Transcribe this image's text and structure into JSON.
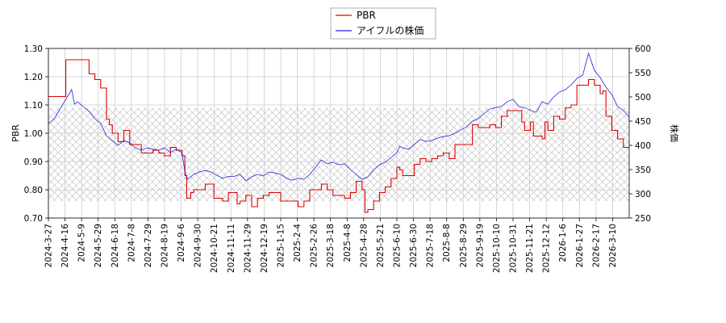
{
  "chart_data": {
    "type": "line",
    "legend": {
      "placement": "top-center",
      "entries": [
        {
          "label": "PBR",
          "color": "#dd0000"
        },
        {
          "label": "アイフルの株価",
          "color": "#2222dd"
        }
      ]
    },
    "ylabel_left": "PBR",
    "ylabel_right": "株価",
    "ylim_left": [
      0.7,
      1.3
    ],
    "ylim_right": [
      250,
      600
    ],
    "yticks_left": [
      "0.70",
      "0.80",
      "0.90",
      "1.00",
      "1.10",
      "1.20",
      "1.30"
    ],
    "yticks_right": [
      "250",
      "300",
      "350",
      "400",
      "450",
      "500",
      "550",
      "600"
    ],
    "x_ticks": [
      "2024-3-27",
      "2024-4-16",
      "2024-5-9",
      "2024-5-29",
      "2024-6-18",
      "2024-7-8",
      "2024-7-29",
      "2024-8-19",
      "2024-9-6",
      "2024-9-30",
      "2024-10-21",
      "2024-11-11",
      "2024-11-29",
      "2024-12-19",
      "2025-1-15",
      "2025-2-4",
      "2025-2-26",
      "2025-3-18",
      "2025-4-8",
      "2025-4-28",
      "2025-5-21",
      "2025-6-10",
      "2025-6-30",
      "2025-7-18",
      "2025-8-8",
      "2025-8-29",
      "2025-9-19",
      "2025-10-10",
      "2025-10-31",
      "2025-11-21",
      "2025-12-12",
      "2026-1-6",
      "2026-1-27",
      "2026-2-17",
      "2026-3-10"
    ],
    "grid": true,
    "hatched_band_left": [
      0.76,
      1.09
    ],
    "series": [
      {
        "name": "PBR",
        "axis": "left",
        "color": "#dd0000",
        "points": [
          [
            0,
            1.13
          ],
          [
            2,
            1.13
          ],
          [
            3,
            1.26
          ],
          [
            6,
            1.26
          ],
          [
            7,
            1.21
          ],
          [
            8,
            1.19
          ],
          [
            9,
            1.16
          ],
          [
            10,
            1.05
          ],
          [
            10.5,
            1.03
          ],
          [
            11,
            1.0
          ],
          [
            12,
            0.97
          ],
          [
            13,
            1.01
          ],
          [
            14,
            0.96
          ],
          [
            15,
            0.96
          ],
          [
            16,
            0.93
          ],
          [
            17,
            0.93
          ],
          [
            18,
            0.94
          ],
          [
            19,
            0.93
          ],
          [
            20,
            0.92
          ],
          [
            21,
            0.95
          ],
          [
            22,
            0.94
          ],
          [
            23,
            0.92
          ],
          [
            23.5,
            0.85
          ],
          [
            23.8,
            0.77
          ],
          [
            24.5,
            0.79
          ],
          [
            25,
            0.8
          ],
          [
            26,
            0.8
          ],
          [
            27,
            0.82
          ],
          [
            28,
            0.82
          ],
          [
            28.5,
            0.77
          ],
          [
            29,
            0.77
          ],
          [
            30,
            0.76
          ],
          [
            31,
            0.79
          ],
          [
            32,
            0.79
          ],
          [
            32.5,
            0.75
          ],
          [
            33,
            0.76
          ],
          [
            34,
            0.78
          ],
          [
            35,
            0.74
          ],
          [
            36,
            0.77
          ],
          [
            37,
            0.78
          ],
          [
            38,
            0.79
          ],
          [
            39,
            0.79
          ],
          [
            40,
            0.76
          ],
          [
            41,
            0.76
          ],
          [
            42,
            0.76
          ],
          [
            43,
            0.74
          ],
          [
            44,
            0.76
          ],
          [
            45,
            0.8
          ],
          [
            46,
            0.8
          ],
          [
            47,
            0.82
          ],
          [
            48,
            0.8
          ],
          [
            49,
            0.78
          ],
          [
            50,
            0.78
          ],
          [
            51,
            0.77
          ],
          [
            52,
            0.79
          ],
          [
            53,
            0.83
          ],
          [
            54,
            0.8
          ],
          [
            54.5,
            0.72
          ],
          [
            55,
            0.73
          ],
          [
            56,
            0.76
          ],
          [
            57,
            0.79
          ],
          [
            58,
            0.81
          ],
          [
            59,
            0.84
          ],
          [
            60,
            0.88
          ],
          [
            60.5,
            0.87
          ],
          [
            61,
            0.85
          ],
          [
            62,
            0.85
          ],
          [
            63,
            0.89
          ],
          [
            64,
            0.91
          ],
          [
            65,
            0.9
          ],
          [
            66,
            0.91
          ],
          [
            67,
            0.92
          ],
          [
            68,
            0.93
          ],
          [
            69,
            0.91
          ],
          [
            70,
            0.96
          ],
          [
            71,
            0.96
          ],
          [
            72,
            0.96
          ],
          [
            73,
            1.03
          ],
          [
            74,
            1.02
          ],
          [
            75,
            1.02
          ],
          [
            76,
            1.03
          ],
          [
            77,
            1.02
          ],
          [
            78,
            1.06
          ],
          [
            79,
            1.08
          ],
          [
            80,
            1.08
          ],
          [
            81,
            1.08
          ],
          [
            81.5,
            1.04
          ],
          [
            82,
            1.01
          ],
          [
            83,
            1.04
          ],
          [
            83.5,
            0.99
          ],
          [
            84,
            0.99
          ],
          [
            85,
            0.98
          ],
          [
            85.5,
            1.04
          ],
          [
            86,
            1.01
          ],
          [
            87,
            1.06
          ],
          [
            88,
            1.05
          ],
          [
            89,
            1.09
          ],
          [
            90,
            1.1
          ],
          [
            91,
            1.17
          ],
          [
            92,
            1.17
          ],
          [
            93,
            1.19
          ],
          [
            94,
            1.17
          ],
          [
            95,
            1.14
          ],
          [
            95.5,
            1.15
          ],
          [
            96,
            1.06
          ],
          [
            97,
            1.01
          ],
          [
            98,
            0.98
          ],
          [
            99,
            0.95
          ],
          [
            100,
            0.95
          ]
        ]
      },
      {
        "name": "アイフルの株価",
        "axis": "right",
        "color": "#2222dd",
        "points": [
          [
            0,
            445
          ],
          [
            1,
            455
          ],
          [
            2,
            475
          ],
          [
            3,
            495
          ],
          [
            4,
            515
          ],
          [
            4.5,
            485
          ],
          [
            5,
            490
          ],
          [
            6,
            480
          ],
          [
            7,
            470
          ],
          [
            8,
            455
          ],
          [
            9,
            445
          ],
          [
            10,
            420
          ],
          [
            10.5,
            415
          ],
          [
            11,
            410
          ],
          [
            12,
            400
          ],
          [
            13,
            410
          ],
          [
            14,
            405
          ],
          [
            15,
            395
          ],
          [
            16,
            390
          ],
          [
            17,
            395
          ],
          [
            18,
            392
          ],
          [
            19,
            390
          ],
          [
            20,
            395
          ],
          [
            21,
            385
          ],
          [
            22,
            392
          ],
          [
            23,
            385
          ],
          [
            23.5,
            345
          ],
          [
            24,
            330
          ],
          [
            25,
            340
          ],
          [
            26,
            345
          ],
          [
            27,
            348
          ],
          [
            28,
            345
          ],
          [
            29,
            338
          ],
          [
            30,
            332
          ],
          [
            31,
            336
          ],
          [
            32,
            336
          ],
          [
            33,
            340
          ],
          [
            34,
            327
          ],
          [
            35,
            335
          ],
          [
            36,
            340
          ],
          [
            37,
            337
          ],
          [
            38,
            345
          ],
          [
            39,
            343
          ],
          [
            40,
            340
          ],
          [
            41,
            332
          ],
          [
            42,
            328
          ],
          [
            43,
            332
          ],
          [
            44,
            330
          ],
          [
            45,
            340
          ],
          [
            46,
            355
          ],
          [
            47,
            370
          ],
          [
            48,
            362
          ],
          [
            49,
            365
          ],
          [
            50,
            360
          ],
          [
            51,
            362
          ],
          [
            52,
            350
          ],
          [
            53,
            340
          ],
          [
            54,
            330
          ],
          [
            55,
            335
          ],
          [
            56,
            350
          ],
          [
            57,
            360
          ],
          [
            58,
            365
          ],
          [
            59,
            375
          ],
          [
            60,
            385
          ],
          [
            60.5,
            398
          ],
          [
            61,
            395
          ],
          [
            62,
            392
          ],
          [
            63,
            402
          ],
          [
            64,
            412
          ],
          [
            65,
            408
          ],
          [
            66,
            410
          ],
          [
            67,
            415
          ],
          [
            68,
            418
          ],
          [
            69,
            420
          ],
          [
            70,
            425
          ],
          [
            71,
            432
          ],
          [
            72,
            438
          ],
          [
            73,
            450
          ],
          [
            74,
            455
          ],
          [
            75,
            465
          ],
          [
            76,
            475
          ],
          [
            77,
            478
          ],
          [
            78,
            480
          ],
          [
            79,
            490
          ],
          [
            80,
            495
          ],
          [
            81,
            480
          ],
          [
            82,
            478
          ],
          [
            83,
            472
          ],
          [
            84,
            468
          ],
          [
            85,
            490
          ],
          [
            86,
            485
          ],
          [
            87,
            500
          ],
          [
            88,
            510
          ],
          [
            89,
            515
          ],
          [
            90,
            525
          ],
          [
            91,
            538
          ],
          [
            92,
            545
          ],
          [
            93,
            590
          ],
          [
            94,
            555
          ],
          [
            95,
            540
          ],
          [
            96,
            520
          ],
          [
            97,
            505
          ],
          [
            98,
            480
          ],
          [
            99,
            472
          ],
          [
            100,
            458
          ]
        ]
      }
    ]
  }
}
